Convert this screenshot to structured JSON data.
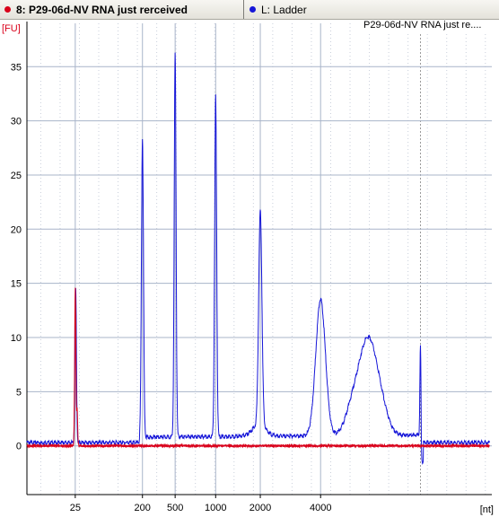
{
  "tabs": [
    {
      "label": "8: P29-06d-NV RNA just rerceived",
      "color": "#d9001a",
      "active": true
    },
    {
      "label": "L: Ladder",
      "color": "#1616d8",
      "active": false
    }
  ],
  "legend_title": "P29-06d-NV RNA just re....",
  "colors": {
    "sample": "#d9001a",
    "ladder": "#1616d8",
    "grid": "#a8b4c9",
    "axis": "#000000"
  },
  "chart_data": {
    "type": "line",
    "ylabel": "[FU]",
    "xlabel": "[nt]",
    "ylim": [
      -4.5,
      39
    ],
    "y_ticks": [
      0,
      5,
      10,
      15,
      20,
      25,
      30,
      35
    ],
    "x_ticks": [
      "25",
      "200",
      "500",
      "1000",
      "2000",
      "4000"
    ],
    "x_tick_time_s": [
      22.5,
      37.1,
      44.2,
      53.0,
      62.7,
      75.8
    ],
    "xlim_time_s": [
      12.0,
      113.0
    ],
    "x_axis_note": "x axis is the electropherogram time axis (s); the tick labels print the ladder sizes in nt",
    "series": [
      {
        "name": "L: Ladder",
        "color": "#1616d8",
        "peaks": [
          {
            "size_nt": "25",
            "height_fu": 14.7
          },
          {
            "size_nt": "200",
            "height_fu": 28.2
          },
          {
            "size_nt": "500",
            "height_fu": 36.0
          },
          {
            "size_nt": "1000",
            "height_fu": 32.0
          },
          {
            "size_nt": "2000",
            "height_fu": 21.0
          },
          {
            "size_nt": "4000",
            "height_fu": 13.2
          },
          {
            "size_nt": "6000",
            "height_fu": 9.6
          },
          {
            "size_nt": "marker",
            "height_fu": 8.8
          }
        ],
        "baseline_fu": 0.3
      },
      {
        "name": "8: P29-06d-NV RNA just rerceived",
        "color": "#d9001a",
        "peaks": [
          {
            "size_nt": "25",
            "height_fu": 14.5
          }
        ],
        "baseline_fu": 0.0
      }
    ]
  }
}
